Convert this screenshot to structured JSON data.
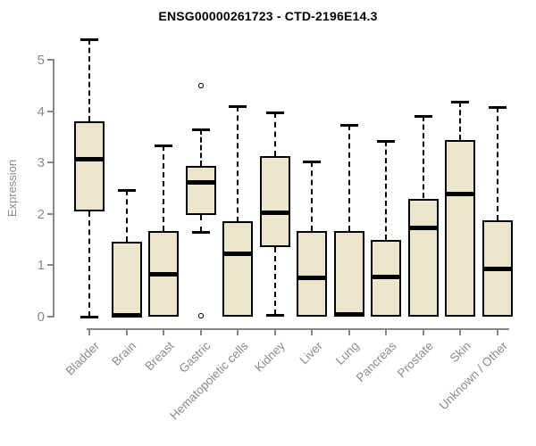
{
  "colors": {
    "box_fill": "#EAE5CB",
    "box_border": "#000000",
    "median": "#000000",
    "axis": "#878787",
    "axis_text": "#8b8b8b",
    "title_text": "#000000",
    "background": "#ffffff"
  },
  "chart_data": {
    "type": "boxplot",
    "title": "ENSG00000261723 - CTD-2196E14.3",
    "xlabel": "",
    "ylabel": "Expression",
    "ylim": [
      0,
      5.5
    ],
    "yticks": [
      0,
      1,
      2,
      3,
      4,
      5
    ],
    "grid": "off",
    "legend": "none",
    "categories": [
      "Bladder",
      "Brain",
      "Breast",
      "Gastric",
      "Hematopoietic cells",
      "Kidney",
      "Liver",
      "Lung",
      "Pancreas",
      "Prostate",
      "Skin",
      "Unknown / Other"
    ],
    "boxes": [
      {
        "label": "Bladder",
        "whisker_low": 0,
        "q1": 2.05,
        "median": 3.07,
        "q3": 3.8,
        "whisker_high": 5.4,
        "outliers": []
      },
      {
        "label": "Brain",
        "whisker_low": 0,
        "q1": 0,
        "median": 0.03,
        "q3": 1.46,
        "whisker_high": 2.46,
        "outliers": []
      },
      {
        "label": "Breast",
        "whisker_low": 0,
        "q1": 0,
        "median": 0.83,
        "q3": 1.67,
        "whisker_high": 3.33,
        "outliers": []
      },
      {
        "label": "Gastric",
        "whisker_low": 1.65,
        "q1": 1.98,
        "median": 2.62,
        "q3": 2.93,
        "whisker_high": 3.65,
        "outliers": [
          4.5,
          0.02
        ]
      },
      {
        "label": "Hematopoietic cells",
        "whisker_low": 0,
        "q1": 0,
        "median": 1.22,
        "q3": 1.85,
        "whisker_high": 4.1,
        "outliers": []
      },
      {
        "label": "Kidney",
        "whisker_low": 0.03,
        "q1": 1.35,
        "median": 2.03,
        "q3": 3.12,
        "whisker_high": 3.97,
        "outliers": []
      },
      {
        "label": "Liver",
        "whisker_low": 0,
        "q1": 0,
        "median": 0.75,
        "q3": 1.67,
        "whisker_high": 3.02,
        "outliers": []
      },
      {
        "label": "Lung",
        "whisker_low": 0,
        "q1": 0,
        "median": 0.04,
        "q3": 1.67,
        "whisker_high": 3.73,
        "outliers": []
      },
      {
        "label": "Pancreas",
        "whisker_low": 0,
        "q1": 0,
        "median": 0.77,
        "q3": 1.49,
        "whisker_high": 3.42,
        "outliers": []
      },
      {
        "label": "Prostate",
        "whisker_low": 0,
        "q1": 0,
        "median": 1.72,
        "q3": 2.3,
        "whisker_high": 3.9,
        "outliers": []
      },
      {
        "label": "Skin",
        "whisker_low": 0,
        "q1": 0,
        "median": 2.38,
        "q3": 3.43,
        "whisker_high": 4.18,
        "outliers": []
      },
      {
        "label": "Unknown / Other",
        "whisker_low": 0,
        "q1": 0,
        "median": 0.93,
        "q3": 1.87,
        "whisker_high": 4.08,
        "outliers": []
      }
    ]
  }
}
